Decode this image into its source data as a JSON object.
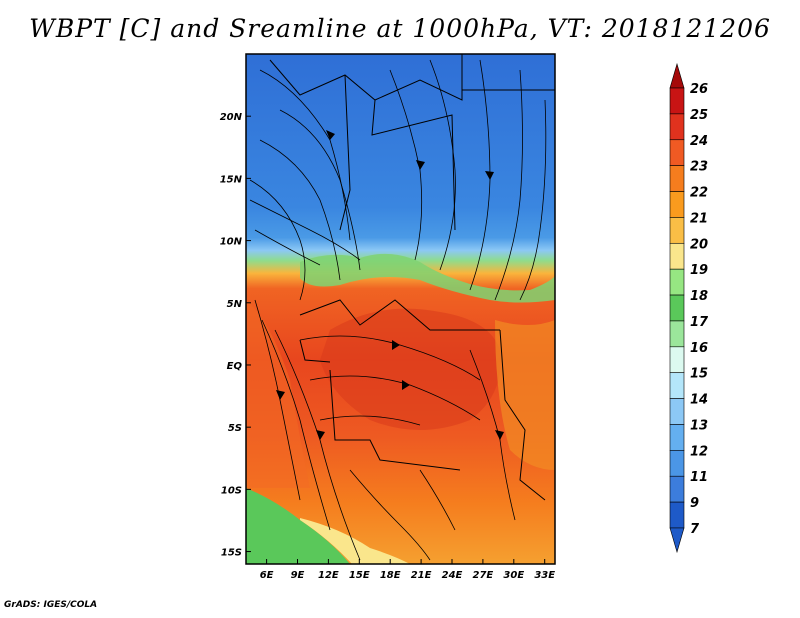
{
  "title": "WBPT [C] and Sreamline at 1000hPa, VT: 2018121206",
  "credit": "GrADS: IGES/COLA",
  "map": {
    "lon_range": [
      4,
      34
    ],
    "lat_range": [
      -16,
      25
    ],
    "lon_ticks": [
      {
        "value": 6,
        "label": "6E"
      },
      {
        "value": 9,
        "label": "9E"
      },
      {
        "value": 12,
        "label": "12E"
      },
      {
        "value": 15,
        "label": "15E"
      },
      {
        "value": 18,
        "label": "18E"
      },
      {
        "value": 21,
        "label": "21E"
      },
      {
        "value": 24,
        "label": "24E"
      },
      {
        "value": 27,
        "label": "27E"
      },
      {
        "value": 30,
        "label": "30E"
      },
      {
        "value": 33,
        "label": "33E"
      }
    ],
    "lat_ticks": [
      {
        "value": 20,
        "label": "20N"
      },
      {
        "value": 15,
        "label": "15N"
      },
      {
        "value": 10,
        "label": "10N"
      },
      {
        "value": 5,
        "label": "5N"
      },
      {
        "value": 0,
        "label": "EQ"
      },
      {
        "value": -5,
        "label": "5S"
      },
      {
        "value": -10,
        "label": "10S"
      },
      {
        "value": -15,
        "label": "15S"
      }
    ]
  },
  "colorbar": {
    "levels": [
      {
        "label": "26",
        "color": "#a50a0a"
      },
      {
        "label": "25",
        "color": "#c81414"
      },
      {
        "label": "24",
        "color": "#e0321e"
      },
      {
        "label": "23",
        "color": "#f05a23"
      },
      {
        "label": "22",
        "color": "#f57d1e"
      },
      {
        "label": "21",
        "color": "#fa9b1e"
      },
      {
        "label": "20",
        "color": "#fabe46"
      },
      {
        "label": "19",
        "color": "#fae68c"
      },
      {
        "label": "18",
        "color": "#96e682"
      },
      {
        "label": "17",
        "color": "#5ac85a"
      },
      {
        "label": "16",
        "color": "#9be69b"
      },
      {
        "label": "15",
        "color": "#dcfaf0"
      },
      {
        "label": "14",
        "color": "#b4e6fa"
      },
      {
        "label": "13",
        "color": "#8cc8f5"
      },
      {
        "label": "12",
        "color": "#64aff0"
      },
      {
        "label": "11",
        "color": "#4b96e6"
      },
      {
        "label": "9",
        "color": "#3c7ddc"
      },
      {
        "label": "7",
        "color": "#1e5ac8"
      }
    ]
  }
}
